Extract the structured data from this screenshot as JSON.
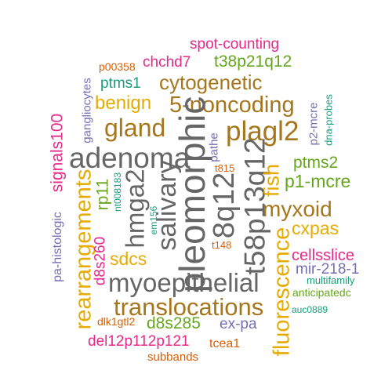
{
  "palette": {
    "gray": "#666666",
    "brown": "#a6761d",
    "gold": "#e6ab02",
    "green": "#66a61e",
    "magenta": "#e7298a",
    "purple": "#7570b3",
    "orange": "#d95f02",
    "teal": "#1b9e77"
  },
  "words": [
    {
      "id": "spot-counting",
      "text": "spot-counting",
      "color": "magenta"
    },
    {
      "id": "p00358",
      "text": "p00358",
      "color": "orange"
    },
    {
      "id": "chchd7",
      "text": "chchd7",
      "color": "magenta"
    },
    {
      "id": "t38p21q12",
      "text": "t38p21q12",
      "color": "green"
    },
    {
      "id": "ptms1",
      "text": "ptms1",
      "color": "teal"
    },
    {
      "id": "cytogenetic",
      "text": "cytogenetic",
      "color": "brown"
    },
    {
      "id": "gangliocytes",
      "text": "gangliocytes",
      "color": "purple"
    },
    {
      "id": "benign",
      "text": "benign",
      "color": "gold"
    },
    {
      "id": "5-noncoding",
      "text": "5-noncoding",
      "color": "brown"
    },
    {
      "id": "p2-mcre",
      "text": "p2-mcre",
      "color": "purple"
    },
    {
      "id": "dna-probes",
      "text": "dna-probes",
      "color": "teal"
    },
    {
      "id": "signals100",
      "text": "signals100",
      "color": "magenta"
    },
    {
      "id": "gland",
      "text": "gland",
      "color": "brown"
    },
    {
      "id": "plagl2",
      "text": "plagl2",
      "color": "brown"
    },
    {
      "id": "adenoma",
      "text": "adenoma",
      "color": "gray"
    },
    {
      "id": "pathe",
      "text": "pathe",
      "color": "purple"
    },
    {
      "id": "ptms2",
      "text": "ptms2",
      "color": "green"
    },
    {
      "id": "pleomorphic",
      "text": "pleomorphic",
      "color": "gray"
    },
    {
      "id": "t815",
      "text": "t815",
      "color": "orange"
    },
    {
      "id": "p1-mcre",
      "text": "p1-mcre",
      "color": "green"
    },
    {
      "id": "rearrangements",
      "text": "rearrangements",
      "color": "gold"
    },
    {
      "id": "nt008183",
      "text": "nt008183",
      "color": "teal"
    },
    {
      "id": "rp11",
      "text": "rp11",
      "color": "green"
    },
    {
      "id": "hmga2",
      "text": "hmga2",
      "color": "gray"
    },
    {
      "id": "salivary",
      "text": "salivary",
      "color": "gray"
    },
    {
      "id": "8q12",
      "text": "8q12",
      "color": "gray"
    },
    {
      "id": "t58p13q12",
      "text": "t58p13q12",
      "color": "gray"
    },
    {
      "id": "fish",
      "text": "fish",
      "color": "gold"
    },
    {
      "id": "em156",
      "text": "em156",
      "color": "teal"
    },
    {
      "id": "myxoid",
      "text": "myxoid",
      "color": "brown"
    },
    {
      "id": "pa-histologic",
      "text": "pa-histologic",
      "color": "purple"
    },
    {
      "id": "d8s260",
      "text": "d8s260",
      "color": "magenta"
    },
    {
      "id": "cxpas",
      "text": "cxpas",
      "color": "gold"
    },
    {
      "id": "t148",
      "text": "t148",
      "color": "orange"
    },
    {
      "id": "sdcs",
      "text": "sdcs",
      "color": "gold"
    },
    {
      "id": "cellsslice",
      "text": "cellsslice",
      "color": "magenta"
    },
    {
      "id": "fluorescence",
      "text": "fluorescence",
      "color": "gold"
    },
    {
      "id": "mir-218-1",
      "text": "mir-218-1",
      "color": "purple"
    },
    {
      "id": "myoepithelial",
      "text": "myoepithelial",
      "color": "gray"
    },
    {
      "id": "multifamily",
      "text": "multifamily",
      "color": "teal"
    },
    {
      "id": "anticipatedc",
      "text": "anticipatedc",
      "color": "green"
    },
    {
      "id": "translocations",
      "text": "translocations",
      "color": "brown"
    },
    {
      "id": "auc0889",
      "text": "auc0889",
      "color": "teal"
    },
    {
      "id": "dlk1gtl2",
      "text": "dlk1gtl2",
      "color": "orange"
    },
    {
      "id": "d8s285",
      "text": "d8s285",
      "color": "green"
    },
    {
      "id": "ex-pa",
      "text": "ex-pa",
      "color": "purple"
    },
    {
      "id": "del12p112p121",
      "text": "del12p112p121",
      "color": "magenta"
    },
    {
      "id": "tcea1",
      "text": "tcea1",
      "color": "orange"
    },
    {
      "id": "subbands",
      "text": "subbands",
      "color": "orange"
    }
  ]
}
